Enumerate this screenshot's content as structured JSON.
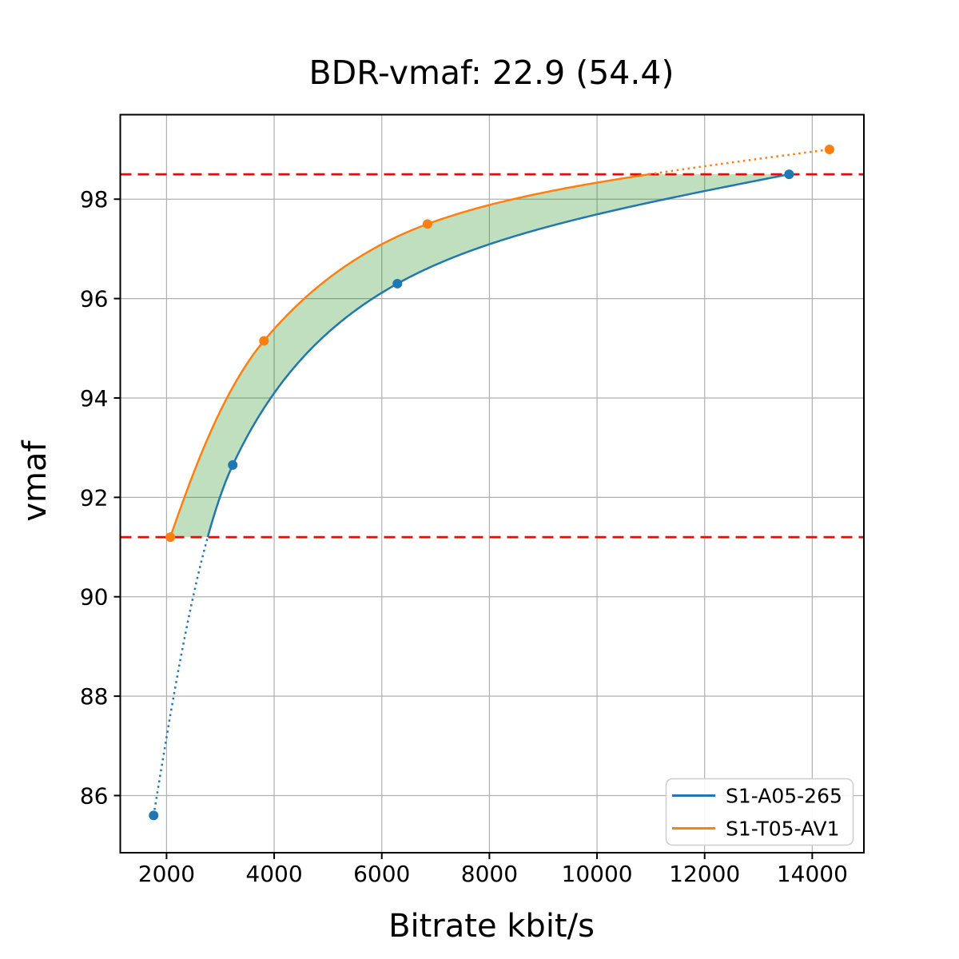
{
  "chart_data": {
    "type": "line",
    "title": "BDR-vmaf: 22.9 (54.4)",
    "xlabel": "Bitrate kbit/s",
    "ylabel": "vmaf",
    "xlim": [
      1140,
      14960
    ],
    "ylim": [
      84.85,
      99.7
    ],
    "xticks": [
      2000,
      4000,
      6000,
      8000,
      10000,
      12000,
      14000
    ],
    "yticks": [
      86,
      88,
      90,
      92,
      94,
      96,
      98
    ],
    "grid": true,
    "grid_color": "#b0b0b0",
    "series": [
      {
        "name": "S1-A05-265",
        "color": "#1f77b4",
        "points": [
          [
            1760,
            85.6
          ],
          [
            3230,
            92.65
          ],
          [
            6290,
            96.3
          ],
          [
            13570,
            98.5
          ]
        ]
      },
      {
        "name": "S1-T05-AV1",
        "color": "#ff7f0e",
        "points": [
          [
            2070,
            91.2
          ],
          [
            3810,
            95.15
          ],
          [
            6850,
            97.5
          ],
          [
            14320,
            99.0
          ]
        ]
      }
    ],
    "reference_lines": {
      "color": "#ff0000",
      "style": "dashed",
      "values": [
        91.2,
        98.5
      ]
    },
    "shaded_region": {
      "fill_color": "rgba(0, 128, 0, 0.25)",
      "between": "series curves",
      "vmaf_range": [
        91.2,
        98.5
      ]
    },
    "legend_position": "lower right"
  },
  "legend": {
    "items": [
      {
        "label": "S1-A05-265",
        "color": "#1f77b4"
      },
      {
        "label": "S1-T05-AV1",
        "color": "#ff7f0e"
      }
    ]
  }
}
